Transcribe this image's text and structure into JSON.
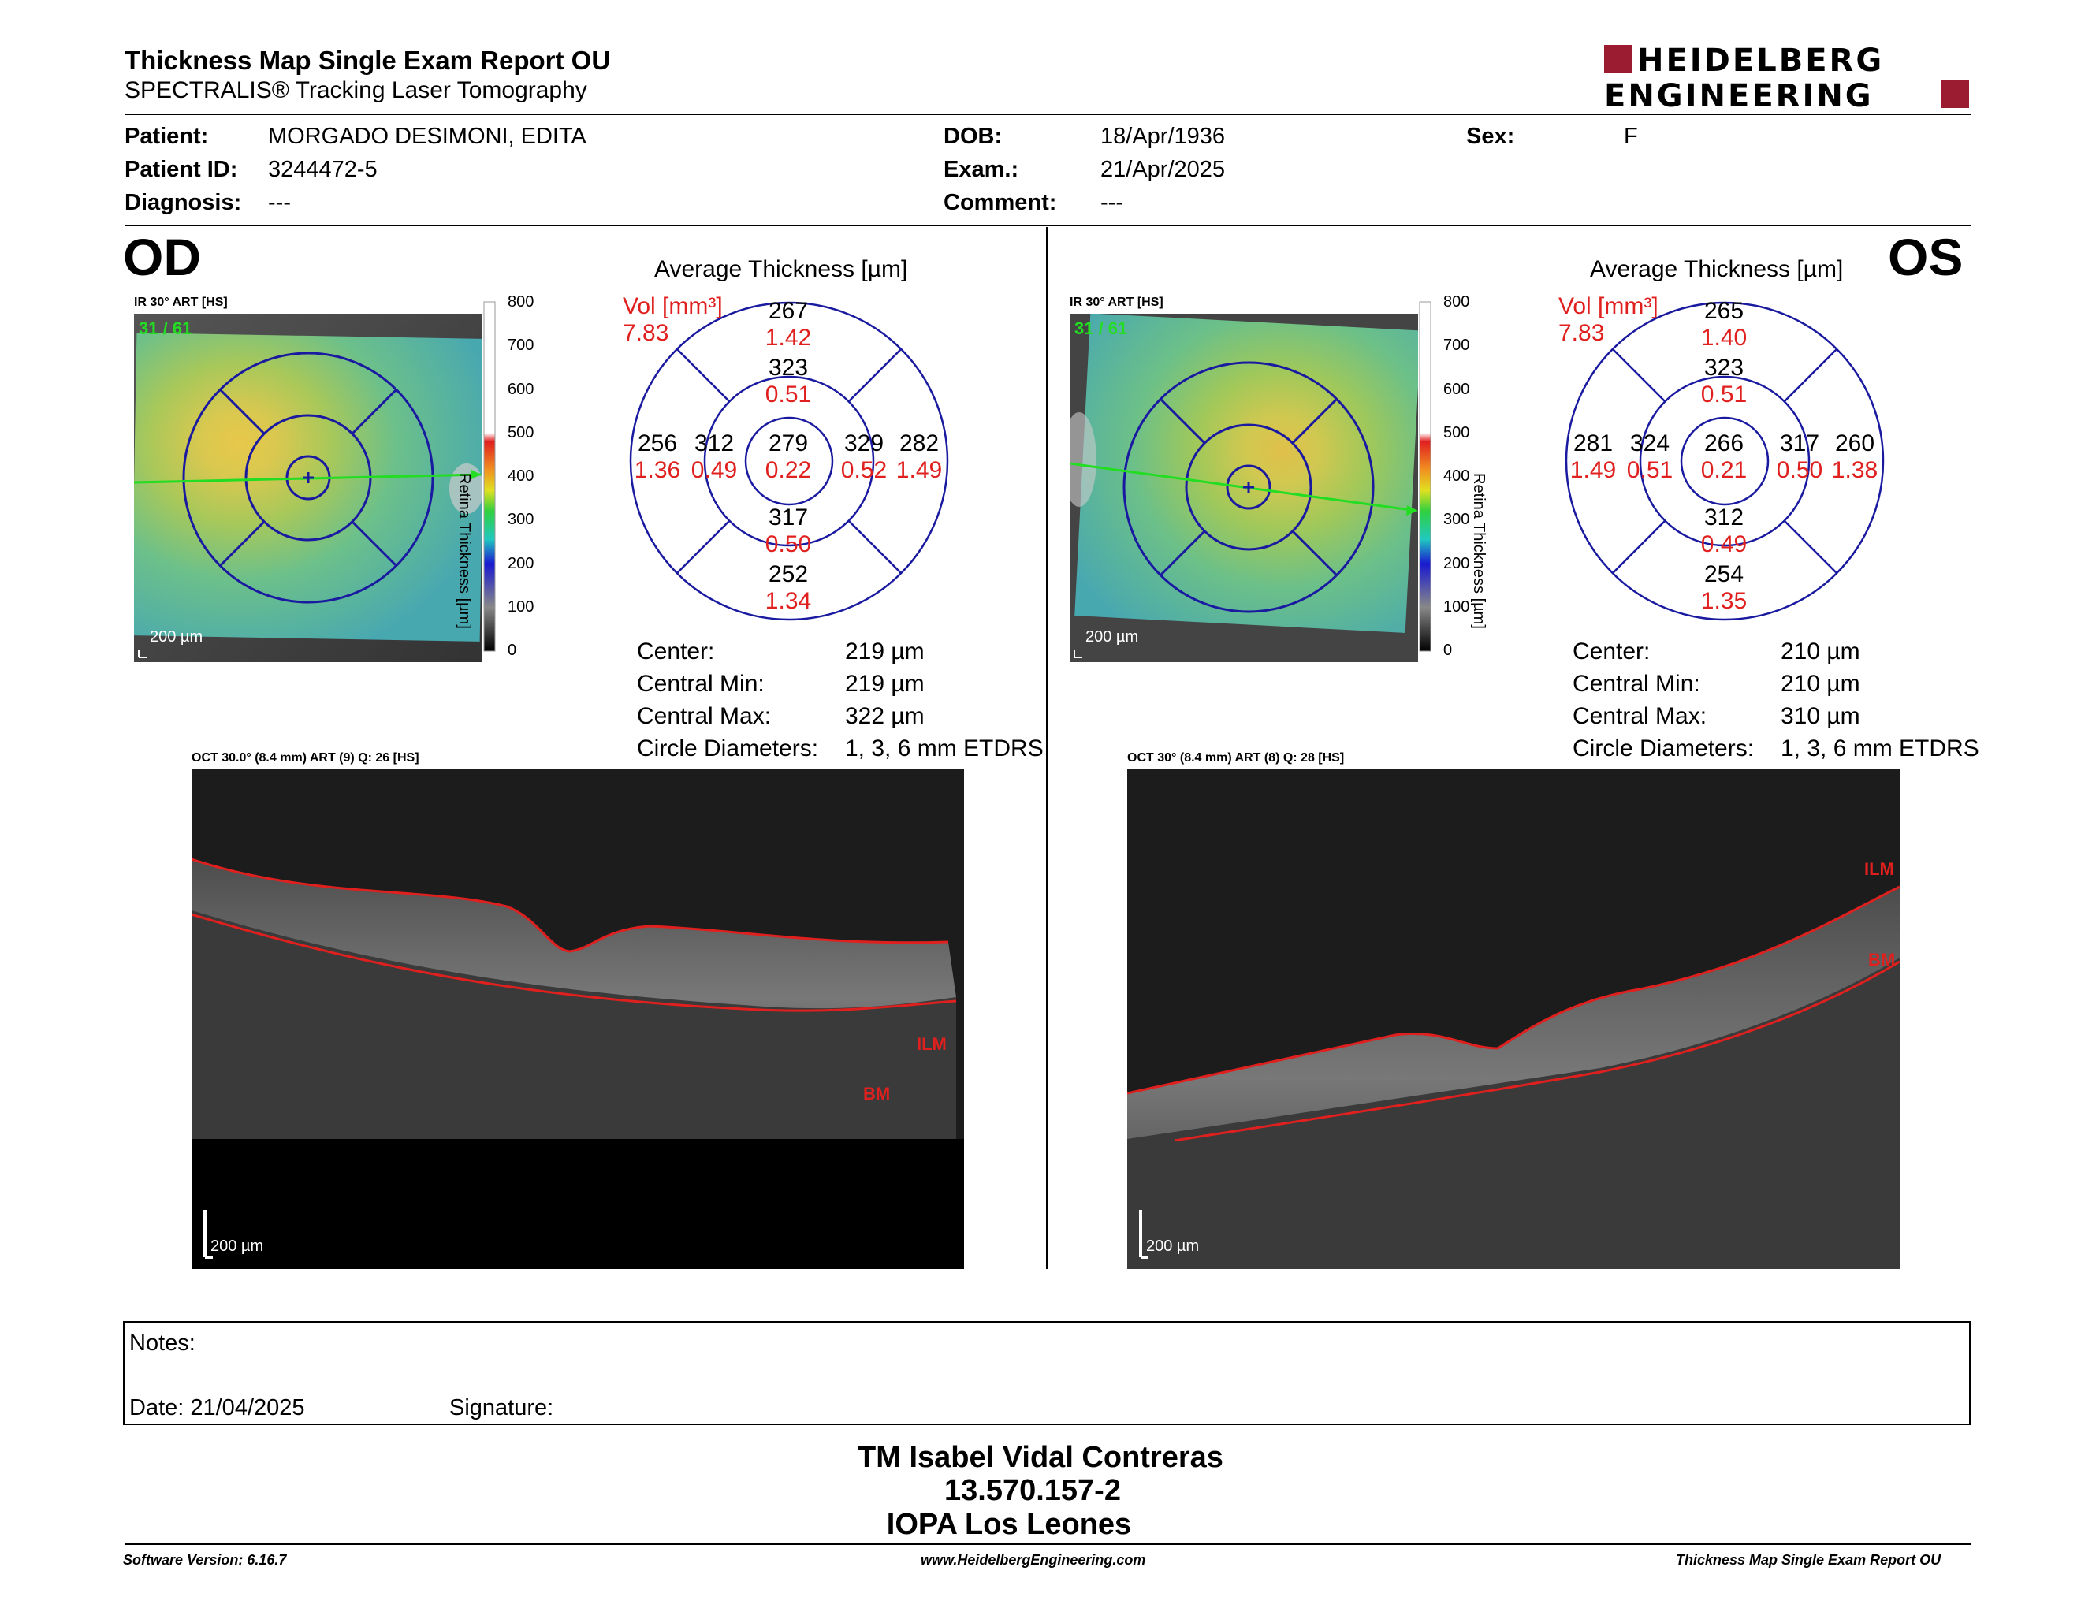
{
  "report": {
    "title": "Thickness Map Single Exam Report OU",
    "subtitle": "SPECTRALIS® Tracking Laser Tomography",
    "logo_line1": "HEIDELBERG",
    "logo_line2": "ENGINEERING"
  },
  "patient": {
    "patient_label": "Patient:",
    "patient_value": "MORGADO DESIMONI, EDITA",
    "id_label": "Patient ID:",
    "id_value": "3244472-5",
    "diagnosis_label": "Diagnosis:",
    "diagnosis_value": "---",
    "dob_label": "DOB:",
    "dob_value": "18/Apr/1936",
    "exam_label": "Exam.:",
    "exam_value": "21/Apr/2025",
    "comment_label": "Comment:",
    "comment_value": "---",
    "sex_label": "Sex:",
    "sex_value": "F"
  },
  "od": {
    "eye": "OD",
    "ir_label": "IR 30° ART [HS]",
    "map_counter": "31 / 61",
    "scale_label": "200 µm",
    "colorbar_title": "Retina Thickness [µm]",
    "colorbar_ticks": [
      "800",
      "700",
      "600",
      "500",
      "400",
      "300",
      "200",
      "100",
      "0"
    ],
    "avg_title": "Average Thickness [µm]",
    "vol_label": "Vol [mm³]",
    "vol_value": "7.83",
    "grid": {
      "top_outer": {
        "t": "267",
        "v": "1.42"
      },
      "top_inner": {
        "t": "323",
        "v": "0.51"
      },
      "left_outer": {
        "t": "256",
        "v": "1.36"
      },
      "left_inner": {
        "t": "312",
        "v": "0.49"
      },
      "center": {
        "t": "279",
        "v": "0.22"
      },
      "right_inner": {
        "t": "329",
        "v": "0.52"
      },
      "right_outer": {
        "t": "282",
        "v": "1.49"
      },
      "bottom_inner": {
        "t": "317",
        "v": "0.50"
      },
      "bottom_outer": {
        "t": "252",
        "v": "1.34"
      }
    },
    "stats": [
      {
        "label": "Center:",
        "value": "219 µm"
      },
      {
        "label": "Central Min:",
        "value": "219 µm"
      },
      {
        "label": "Central Max:",
        "value": "322 µm"
      },
      {
        "label": "Circle Diameters:",
        "value": "1, 3, 6 mm ETDRS"
      }
    ],
    "oct_label": "OCT 30.0° (8.4 mm) ART (9) Q: 26 [HS]",
    "ilm_label": "ILM",
    "bm_label": "BM",
    "oct_scale": "200 µm"
  },
  "os": {
    "eye": "OS",
    "ir_label": "IR 30° ART [HS]",
    "map_counter": "31 / 61",
    "scale_label": "200 µm",
    "colorbar_title": "Retina Thickness [µm]",
    "colorbar_ticks": [
      "800",
      "700",
      "600",
      "500",
      "400",
      "300",
      "200",
      "100",
      "0"
    ],
    "avg_title": "Average Thickness [µm]",
    "vol_label": "Vol [mm³]",
    "vol_value": "7.83",
    "grid": {
      "top_outer": {
        "t": "265",
        "v": "1.40"
      },
      "top_inner": {
        "t": "323",
        "v": "0.51"
      },
      "left_outer": {
        "t": "281",
        "v": "1.49"
      },
      "left_inner": {
        "t": "324",
        "v": "0.51"
      },
      "center": {
        "t": "266",
        "v": "0.21"
      },
      "right_inner": {
        "t": "317",
        "v": "0.50"
      },
      "right_outer": {
        "t": "260",
        "v": "1.38"
      },
      "bottom_inner": {
        "t": "312",
        "v": "0.49"
      },
      "bottom_outer": {
        "t": "254",
        "v": "1.35"
      }
    },
    "stats": [
      {
        "label": "Center:",
        "value": "210 µm"
      },
      {
        "label": "Central Min:",
        "value": "210 µm"
      },
      {
        "label": "Central Max:",
        "value": "310 µm"
      },
      {
        "label": "Circle Diameters:",
        "value": "1, 3, 6 mm ETDRS"
      }
    ],
    "oct_label": "OCT 30° (8.4 mm) ART (8) Q: 28 [HS]",
    "ilm_label": "ILM",
    "bm_label": "BM",
    "oct_scale": "200 µm"
  },
  "notes": {
    "notes_label": "Notes:",
    "date_label": "Date: 21/04/2025",
    "signature_label": "Signature:"
  },
  "signer": {
    "name": "TM Isabel Vidal Contreras",
    "id": "13.570.157-2",
    "institution": "IOPA Los Leones"
  },
  "footer": {
    "software": "Software Version: 6.16.7",
    "website": "www.HeidelbergEngineering.com",
    "report_name": "Thickness Map Single Exam Report OU"
  },
  "colors": {
    "accent_red": "#e0201e",
    "logo_red": "#9b1b30",
    "grid_blue": "#1a1aa0"
  }
}
